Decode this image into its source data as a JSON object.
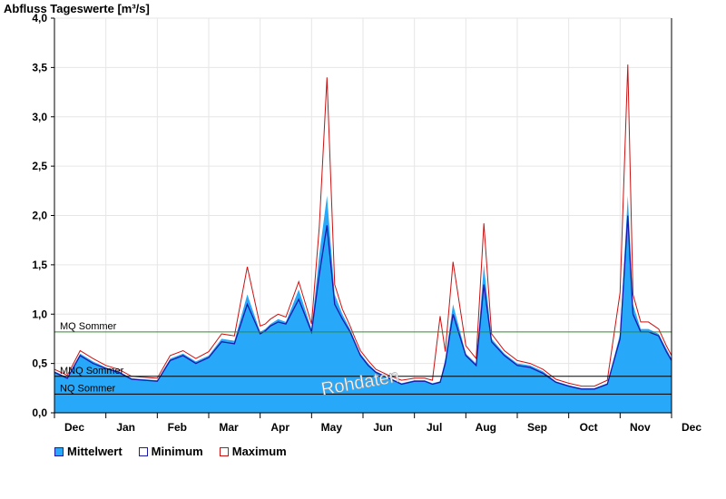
{
  "chart_data": {
    "type": "area",
    "title": "Abfluss Tageswerte [m³/s]",
    "ylim": [
      0,
      4.0
    ],
    "yticks": [
      "0,0",
      "0,5",
      "1,0",
      "1,5",
      "2,0",
      "2,5",
      "3,0",
      "3,5",
      "4,0"
    ],
    "xticks": [
      "Dec",
      "Jan",
      "Feb",
      "Mar",
      "Apr",
      "May",
      "Jun",
      "Jul",
      "Aug",
      "Sep",
      "Oct",
      "Nov",
      "Dec"
    ],
    "grid": true,
    "legend_position": "bottom-left",
    "reference_lines": [
      {
        "name": "MQ Sommer",
        "value": 0.82,
        "color": "#2e8b2e"
      },
      {
        "name": "MNQ Sommer",
        "value": 0.37,
        "color": "#000000"
      },
      {
        "name": "NQ Sommer",
        "value": 0.19,
        "color": "#000000"
      }
    ],
    "watermark": "Rohdaten",
    "x_months": [
      0,
      0.25,
      0.5,
      0.75,
      1.0,
      1.25,
      1.5,
      1.75,
      2.0,
      2.25,
      2.5,
      2.75,
      3.0,
      3.25,
      3.5,
      3.75,
      4.0,
      4.1,
      4.2,
      4.35,
      4.5,
      4.75,
      5.0,
      5.15,
      5.3,
      5.45,
      5.6,
      5.75,
      5.85,
      5.95,
      6.1,
      6.25,
      6.5,
      6.75,
      7.0,
      7.2,
      7.35,
      7.5,
      7.6,
      7.75,
      8.0,
      8.2,
      8.35,
      8.5,
      8.75,
      9.0,
      9.25,
      9.5,
      9.75,
      10.0,
      10.25,
      10.5,
      10.75,
      11.0,
      11.15,
      11.25,
      11.4,
      11.55,
      11.75,
      11.9,
      12.0
    ],
    "series": [
      {
        "name": "Mittelwert",
        "color": "#28a8f8",
        "values": [
          0.42,
          0.36,
          0.6,
          0.52,
          0.46,
          0.42,
          0.35,
          0.34,
          0.33,
          0.55,
          0.6,
          0.52,
          0.58,
          0.75,
          0.73,
          1.2,
          0.82,
          0.85,
          0.9,
          0.95,
          0.92,
          1.25,
          0.85,
          1.6,
          2.2,
          1.2,
          1.0,
          0.85,
          0.72,
          0.6,
          0.5,
          0.42,
          0.36,
          0.3,
          0.33,
          0.33,
          0.3,
          0.32,
          0.55,
          1.1,
          0.6,
          0.5,
          1.5,
          0.75,
          0.6,
          0.5,
          0.48,
          0.42,
          0.32,
          0.28,
          0.25,
          0.25,
          0.3,
          0.8,
          2.2,
          1.1,
          0.85,
          0.85,
          0.8,
          0.65,
          0.55
        ]
      },
      {
        "name": "Minimum",
        "color": "#1a1aa8",
        "values": [
          0.41,
          0.35,
          0.58,
          0.5,
          0.45,
          0.41,
          0.34,
          0.33,
          0.32,
          0.53,
          0.58,
          0.5,
          0.56,
          0.72,
          0.7,
          1.1,
          0.8,
          0.83,
          0.88,
          0.92,
          0.9,
          1.15,
          0.82,
          1.4,
          1.9,
          1.1,
          0.95,
          0.82,
          0.7,
          0.58,
          0.48,
          0.41,
          0.35,
          0.29,
          0.32,
          0.32,
          0.29,
          0.31,
          0.5,
          1.0,
          0.58,
          0.48,
          1.3,
          0.72,
          0.58,
          0.48,
          0.46,
          0.4,
          0.31,
          0.27,
          0.24,
          0.24,
          0.29,
          0.75,
          2.0,
          1.0,
          0.82,
          0.82,
          0.78,
          0.62,
          0.53
        ]
      },
      {
        "name": "Maximum",
        "color": "#cc1111",
        "values": [
          0.44,
          0.38,
          0.63,
          0.55,
          0.48,
          0.44,
          0.37,
          0.36,
          0.35,
          0.58,
          0.63,
          0.55,
          0.62,
          0.8,
          0.78,
          1.48,
          0.88,
          0.9,
          0.95,
          1.0,
          0.97,
          1.33,
          0.9,
          1.88,
          3.4,
          1.3,
          1.05,
          0.88,
          0.75,
          0.63,
          0.53,
          0.44,
          0.38,
          0.33,
          0.35,
          0.35,
          0.33,
          0.98,
          0.62,
          1.53,
          0.68,
          0.55,
          1.92,
          0.8,
          0.63,
          0.53,
          0.5,
          0.44,
          0.34,
          0.3,
          0.27,
          0.27,
          0.33,
          1.22,
          3.53,
          1.2,
          0.92,
          0.92,
          0.85,
          0.68,
          0.58
        ]
      }
    ]
  }
}
